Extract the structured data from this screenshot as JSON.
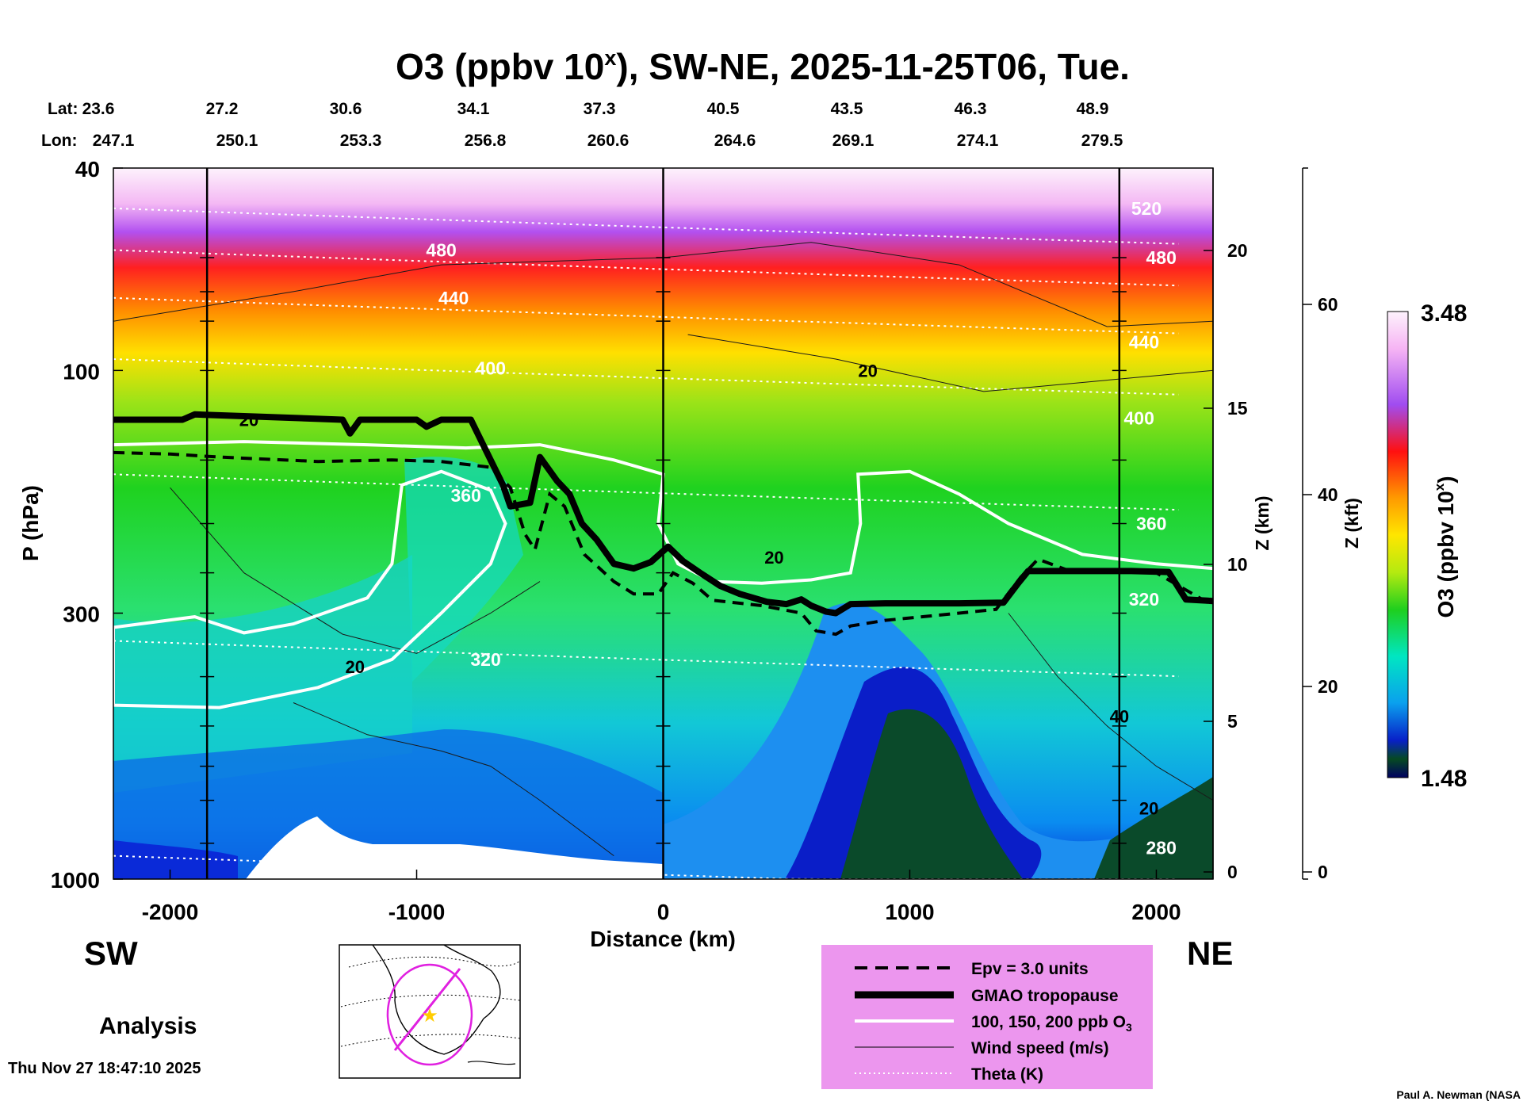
{
  "chart_data": {
    "type": "heatmap",
    "title": "O3 (ppbv 10",
    "title_superscript": "x",
    "title_suffix": "), SW-NE, 2025-11-25T06, Tue.",
    "lat_label": "Lat:",
    "lon_label": "Lon:",
    "lat_values": [
      "23.6",
      "27.2",
      "30.6",
      "34.1",
      "37.3",
      "40.5",
      "43.5",
      "46.3",
      "48.9"
    ],
    "lon_values": [
      "247.1",
      "250.1",
      "253.3",
      "256.8",
      "260.6",
      "264.6",
      "269.1",
      "274.1",
      "279.5"
    ],
    "xlabel": "Distance (km)",
    "ylabel": "P (hPa)",
    "xlim": [
      -2230,
      2230
    ],
    "x_ticks": [
      "-2000",
      "-1000",
      "0",
      "1000",
      "2000"
    ],
    "x_tick_values": [
      -2000,
      -1000,
      0,
      1000,
      2000
    ],
    "ylim": [
      1000,
      40
    ],
    "y_ticks": [
      "40",
      "100",
      "300",
      "1000"
    ],
    "y_tick_values": [
      40,
      100,
      300,
      1000
    ],
    "z_km_label": "Z (km)",
    "z_km_ticks": [
      "20",
      "15",
      "10",
      "5",
      "0"
    ],
    "z_km_values": [
      20,
      15,
      10,
      5,
      0
    ],
    "z_kft_label": "Z (kft)",
    "z_kft_ticks": [
      "60",
      "40",
      "20",
      "0"
    ],
    "z_kft_values": [
      60,
      40,
      20,
      0
    ],
    "colorbar_label": "O3 (ppbv 10",
    "colorbar_label_superscript": "x",
    "colorbar_label_suffix": ")",
    "colorbar_min": "1.48",
    "colorbar_max": "3.48",
    "vertical_markers": [
      -1850,
      0,
      1850
    ],
    "theta_levels": [
      {
        "label": "520",
        "p": 48
      },
      {
        "label": "480",
        "p": 58
      },
      {
        "label": "440",
        "p": 72
      },
      {
        "label": "400",
        "p": 95
      },
      {
        "label": "360",
        "p": 160
      },
      {
        "label": "320",
        "p": 340
      },
      {
        "label": "280",
        "p": 900
      }
    ],
    "theta_label_positions": [
      {
        "label": "520",
        "x": 1960,
        "p": 48
      },
      {
        "label": "480",
        "x": -900,
        "p": 58
      },
      {
        "label": "480",
        "x": 2020,
        "p": 60
      },
      {
        "label": "440",
        "x": -850,
        "p": 72
      },
      {
        "label": "440",
        "x": 1950,
        "p": 88
      },
      {
        "label": "400",
        "x": -700,
        "p": 99
      },
      {
        "label": "400",
        "x": 1930,
        "p": 124
      },
      {
        "label": "360",
        "x": -800,
        "p": 176
      },
      {
        "label": "360",
        "x": 1980,
        "p": 200
      },
      {
        "label": "320",
        "x": -720,
        "p": 370
      },
      {
        "label": "320",
        "x": 1950,
        "p": 282
      },
      {
        "label": "280",
        "x": 2020,
        "p": 868
      }
    ],
    "wind_labels": [
      {
        "label": "20",
        "x": -1680,
        "p": 125
      },
      {
        "label": "20",
        "x": 830,
        "p": 100
      },
      {
        "label": "20",
        "x": 450,
        "p": 233
      },
      {
        "label": "20",
        "x": -1250,
        "p": 382
      },
      {
        "label": "40",
        "x": 1850,
        "p": 478
      },
      {
        "label": "20",
        "x": 1970,
        "p": 725
      }
    ],
    "tropopause": [
      {
        "x": -2230,
        "p": 125
      },
      {
        "x": -1950,
        "p": 125
      },
      {
        "x": -1900,
        "p": 122
      },
      {
        "x": -1700,
        "p": 123
      },
      {
        "x": -1300,
        "p": 125
      },
      {
        "x": -1270,
        "p": 133
      },
      {
        "x": -1230,
        "p": 125
      },
      {
        "x": -1000,
        "p": 125
      },
      {
        "x": -960,
        "p": 129
      },
      {
        "x": -900,
        "p": 125
      },
      {
        "x": -780,
        "p": 125
      },
      {
        "x": -700,
        "p": 150
      },
      {
        "x": -650,
        "p": 168
      },
      {
        "x": -620,
        "p": 185
      },
      {
        "x": -540,
        "p": 182
      },
      {
        "x": -500,
        "p": 148
      },
      {
        "x": -430,
        "p": 165
      },
      {
        "x": -380,
        "p": 175
      },
      {
        "x": -330,
        "p": 200
      },
      {
        "x": -270,
        "p": 215
      },
      {
        "x": -200,
        "p": 240
      },
      {
        "x": -120,
        "p": 245
      },
      {
        "x": -50,
        "p": 238
      },
      {
        "x": 20,
        "p": 222
      },
      {
        "x": 80,
        "p": 237
      },
      {
        "x": 150,
        "p": 250
      },
      {
        "x": 230,
        "p": 265
      },
      {
        "x": 310,
        "p": 275
      },
      {
        "x": 420,
        "p": 285
      },
      {
        "x": 500,
        "p": 288
      },
      {
        "x": 560,
        "p": 282
      },
      {
        "x": 600,
        "p": 290
      },
      {
        "x": 660,
        "p": 298
      },
      {
        "x": 700,
        "p": 300
      },
      {
        "x": 760,
        "p": 288
      },
      {
        "x": 900,
        "p": 287
      },
      {
        "x": 1200,
        "p": 287
      },
      {
        "x": 1380,
        "p": 286
      },
      {
        "x": 1440,
        "p": 262
      },
      {
        "x": 1480,
        "p": 248
      },
      {
        "x": 1900,
        "p": 248
      },
      {
        "x": 2050,
        "p": 249
      },
      {
        "x": 2120,
        "p": 282
      },
      {
        "x": 2230,
        "p": 284
      }
    ],
    "epv_3_units": [
      {
        "x": -2230,
        "p": 145
      },
      {
        "x": -2000,
        "p": 146
      },
      {
        "x": -1800,
        "p": 148
      },
      {
        "x": -1400,
        "p": 151
      },
      {
        "x": -1100,
        "p": 150
      },
      {
        "x": -900,
        "p": 151
      },
      {
        "x": -700,
        "p": 155
      },
      {
        "x": -620,
        "p": 170
      },
      {
        "x": -560,
        "p": 210
      },
      {
        "x": -520,
        "p": 225
      },
      {
        "x": -460,
        "p": 175
      },
      {
        "x": -400,
        "p": 185
      },
      {
        "x": -320,
        "p": 230
      },
      {
        "x": -200,
        "p": 260
      },
      {
        "x": -120,
        "p": 275
      },
      {
        "x": -20,
        "p": 275
      },
      {
        "x": 40,
        "p": 250
      },
      {
        "x": 120,
        "p": 262
      },
      {
        "x": 200,
        "p": 283
      },
      {
        "x": 400,
        "p": 290
      },
      {
        "x": 560,
        "p": 300
      },
      {
        "x": 620,
        "p": 325
      },
      {
        "x": 700,
        "p": 330
      },
      {
        "x": 760,
        "p": 318
      },
      {
        "x": 900,
        "p": 310
      },
      {
        "x": 1200,
        "p": 300
      },
      {
        "x": 1350,
        "p": 295
      },
      {
        "x": 1450,
        "p": 255
      },
      {
        "x": 1520,
        "p": 235
      },
      {
        "x": 1650,
        "p": 248
      },
      {
        "x": 2000,
        "p": 250
      },
      {
        "x": 2230,
        "p": 290
      }
    ],
    "ozone_100ppb": [
      {
        "x": -2230,
        "p": 320
      },
      {
        "x": -1900,
        "p": 305
      },
      {
        "x": -1700,
        "p": 328
      },
      {
        "x": -1500,
        "p": 315
      },
      {
        "x": -1200,
        "p": 280
      },
      {
        "x": -1100,
        "p": 240
      },
      {
        "x": -1060,
        "p": 168
      },
      {
        "x": -900,
        "p": 158
      },
      {
        "x": -700,
        "p": 172
      },
      {
        "x": -640,
        "p": 200
      },
      {
        "x": -700,
        "p": 240
      },
      {
        "x": -900,
        "p": 300
      },
      {
        "x": -1100,
        "p": 370
      },
      {
        "x": -1400,
        "p": 420
      },
      {
        "x": -1800,
        "p": 460
      },
      {
        "x": -2230,
        "p": 455
      }
    ],
    "ozone_150ppb": [
      {
        "x": -2230,
        "p": 140
      },
      {
        "x": -1700,
        "p": 138
      },
      {
        "x": -1200,
        "p": 140
      },
      {
        "x": -800,
        "p": 142
      },
      {
        "x": -500,
        "p": 140
      },
      {
        "x": -200,
        "p": 150
      },
      {
        "x": 0,
        "p": 160
      },
      {
        "x": -20,
        "p": 200
      },
      {
        "x": 60,
        "p": 240
      },
      {
        "x": 200,
        "p": 260
      },
      {
        "x": 400,
        "p": 262
      },
      {
        "x": 600,
        "p": 258
      },
      {
        "x": 760,
        "p": 250
      },
      {
        "x": 800,
        "p": 200
      },
      {
        "x": 790,
        "p": 160
      },
      {
        "x": 1000,
        "p": 158
      },
      {
        "x": 1200,
        "p": 175
      },
      {
        "x": 1400,
        "p": 200
      },
      {
        "x": 1700,
        "p": 230
      },
      {
        "x": 2000,
        "p": 240
      },
      {
        "x": 2230,
        "p": 245
      }
    ],
    "wind_speed_isotachs": [
      [
        {
          "x": -2230,
          "p": 80
        },
        {
          "x": -1500,
          "p": 70
        },
        {
          "x": -900,
          "p": 62
        },
        {
          "x": 0,
          "p": 60
        },
        {
          "x": 600,
          "p": 56
        },
        {
          "x": 1200,
          "p": 62
        },
        {
          "x": 1800,
          "p": 82
        },
        {
          "x": 2230,
          "p": 80
        }
      ],
      [
        {
          "x": -2000,
          "p": 170
        },
        {
          "x": -1700,
          "p": 250
        },
        {
          "x": -1300,
          "p": 330
        },
        {
          "x": -1000,
          "p": 360
        },
        {
          "x": -700,
          "p": 300
        },
        {
          "x": -500,
          "p": 260
        }
      ],
      [
        {
          "x": 100,
          "p": 85
        },
        {
          "x": 700,
          "p": 95
        },
        {
          "x": 1300,
          "p": 110
        },
        {
          "x": 2230,
          "p": 100
        }
      ],
      [
        {
          "x": -1500,
          "p": 450
        },
        {
          "x": -1200,
          "p": 520
        },
        {
          "x": -900,
          "p": 560
        },
        {
          "x": -700,
          "p": 600
        },
        {
          "x": -500,
          "p": 700
        },
        {
          "x": -200,
          "p": 900
        }
      ],
      [
        {
          "x": 1400,
          "p": 300
        },
        {
          "x": 1600,
          "p": 400
        },
        {
          "x": 1800,
          "p": 500
        },
        {
          "x": 2000,
          "p": 600
        },
        {
          "x": 2230,
          "p": 700
        }
      ]
    ],
    "legend": [
      {
        "label": "Epv = 3.0 units",
        "style": "dashed"
      },
      {
        "label": "GMAO tropopause",
        "style": "thick"
      },
      {
        "label": "100, 150, 200 ppb O",
        "subscript": "3",
        "style": "white"
      },
      {
        "label": "Wind speed (m/s)",
        "style": "thin"
      },
      {
        "label": "Theta (K)",
        "style": "dotted"
      }
    ],
    "legend_bg": "#ec96ee",
    "side_labels": {
      "left": "SW",
      "right": "NE"
    },
    "analysis_label": "Analysis",
    "timestamp": "Thu Nov 27 18:47:10 2025",
    "credit": "Paul A. Newman (NASA"
  }
}
